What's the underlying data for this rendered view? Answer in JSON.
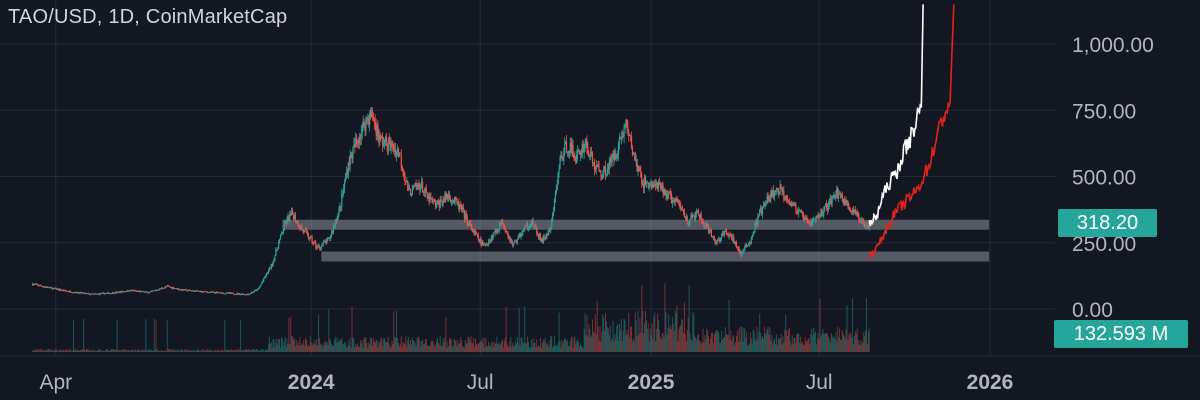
{
  "header": {
    "title": "TAO/USD, 1D, CoinMarketCap"
  },
  "colors": {
    "background": "#131722",
    "grid": "#262a36",
    "candle_up": "#26a69a",
    "candle_down": "#ef5350",
    "projection_white": "#ffffff",
    "projection_red": "#e0241c",
    "zone": "#8c8f99",
    "tag": "#26a69a"
  },
  "chart_data": {
    "type": "candlestick",
    "title": "TAO/USD, 1D, CoinMarketCap",
    "x_ticks": [
      "Apr",
      "2024",
      "Jul",
      "2025",
      "Jul",
      "2026"
    ],
    "y_ticks": [
      "0.00",
      "250.00",
      "500.00",
      "750.00",
      "1,000.00"
    ],
    "ylim": [
      -90,
      1150
    ],
    "grid": true,
    "price_series": [
      [
        "2023-03-06",
        95
      ],
      [
        "2023-03-25",
        80
      ],
      [
        "2023-04-15",
        66
      ],
      [
        "2023-05-10",
        55
      ],
      [
        "2023-06-05",
        62
      ],
      [
        "2023-06-20",
        70
      ],
      [
        "2023-07-10",
        62
      ],
      [
        "2023-07-30",
        85
      ],
      [
        "2023-08-15",
        72
      ],
      [
        "2023-09-10",
        64
      ],
      [
        "2023-10-10",
        58
      ],
      [
        "2023-10-25",
        55
      ],
      [
        "2023-11-05",
        75
      ],
      [
        "2023-11-20",
        170
      ],
      [
        "2023-11-28",
        260
      ],
      [
        "2023-12-05",
        330
      ],
      [
        "2023-12-12",
        360
      ],
      [
        "2023-12-20",
        310
      ],
      [
        "2023-12-31",
        265
      ],
      [
        "2024-01-08",
        230
      ],
      [
        "2024-01-20",
        260
      ],
      [
        "2024-02-01",
        380
      ],
      [
        "2024-02-10",
        550
      ],
      [
        "2024-02-20",
        640
      ],
      [
        "2024-03-01",
        720
      ],
      [
        "2024-03-07",
        730
      ],
      [
        "2024-03-15",
        640
      ],
      [
        "2024-03-28",
        610
      ],
      [
        "2024-04-05",
        590
      ],
      [
        "2024-04-15",
        440
      ],
      [
        "2024-04-28",
        470
      ],
      [
        "2024-05-05",
        420
      ],
      [
        "2024-05-15",
        390
      ],
      [
        "2024-05-28",
        430
      ],
      [
        "2024-06-10",
        380
      ],
      [
        "2024-06-22",
        300
      ],
      [
        "2024-07-05",
        235
      ],
      [
        "2024-07-15",
        280
      ],
      [
        "2024-07-25",
        330
      ],
      [
        "2024-08-05",
        240
      ],
      [
        "2024-08-15",
        290
      ],
      [
        "2024-08-25",
        330
      ],
      [
        "2024-09-05",
        255
      ],
      [
        "2024-09-15",
        300
      ],
      [
        "2024-09-25",
        560
      ],
      [
        "2024-10-03",
        620
      ],
      [
        "2024-10-13",
        570
      ],
      [
        "2024-10-22",
        630
      ],
      [
        "2024-11-01",
        540
      ],
      [
        "2024-11-10",
        510
      ],
      [
        "2024-11-20",
        560
      ],
      [
        "2024-11-27",
        620
      ],
      [
        "2024-12-05",
        700
      ],
      [
        "2024-12-12",
        600
      ],
      [
        "2024-12-22",
        480
      ],
      [
        "2024-12-31",
        470
      ],
      [
        "2025-01-10",
        460
      ],
      [
        "2025-01-22",
        420
      ],
      [
        "2025-02-01",
        390
      ],
      [
        "2025-02-10",
        330
      ],
      [
        "2025-02-20",
        360
      ],
      [
        "2025-03-01",
        310
      ],
      [
        "2025-03-12",
        250
      ],
      [
        "2025-03-22",
        290
      ],
      [
        "2025-04-01",
        255
      ],
      [
        "2025-04-08",
        205
      ],
      [
        "2025-04-18",
        260
      ],
      [
        "2025-04-28",
        360
      ],
      [
        "2025-05-10",
        430
      ],
      [
        "2025-05-20",
        450
      ],
      [
        "2025-05-30",
        410
      ],
      [
        "2025-06-10",
        360
      ],
      [
        "2025-06-20",
        320
      ],
      [
        "2025-06-30",
        350
      ],
      [
        "2025-07-10",
        390
      ],
      [
        "2025-07-20",
        440
      ],
      [
        "2025-07-28",
        410
      ],
      [
        "2025-08-08",
        360
      ],
      [
        "2025-08-16",
        330
      ],
      [
        "2025-08-24",
        318
      ]
    ],
    "projection_white": [
      [
        "2025-08-24",
        318
      ],
      [
        "2025-09-01",
        350
      ],
      [
        "2025-09-07",
        420
      ],
      [
        "2025-09-15",
        480
      ],
      [
        "2025-09-22",
        510
      ],
      [
        "2025-10-01",
        600
      ],
      [
        "2025-10-08",
        650
      ],
      [
        "2025-10-15",
        730
      ],
      [
        "2025-10-19",
        760
      ],
      [
        "2025-10-21",
        1150
      ]
    ],
    "projection_red": [
      [
        "2025-08-24",
        200
      ],
      [
        "2025-09-01",
        230
      ],
      [
        "2025-09-10",
        290
      ],
      [
        "2025-09-20",
        360
      ],
      [
        "2025-10-01",
        400
      ],
      [
        "2025-10-15",
        450
      ],
      [
        "2025-10-28",
        550
      ],
      [
        "2025-11-05",
        650
      ],
      [
        "2025-11-12",
        730
      ],
      [
        "2025-11-19",
        780
      ],
      [
        "2025-11-23",
        1150
      ]
    ],
    "horizontal_zones": [
      {
        "from": "2023-12-01",
        "to": "2025-12-31",
        "value": 318
      },
      {
        "from": "2024-01-12",
        "to": "2025-12-31",
        "value": 198
      }
    ],
    "last_price": "318.20",
    "volume_last": "132.593 M"
  }
}
